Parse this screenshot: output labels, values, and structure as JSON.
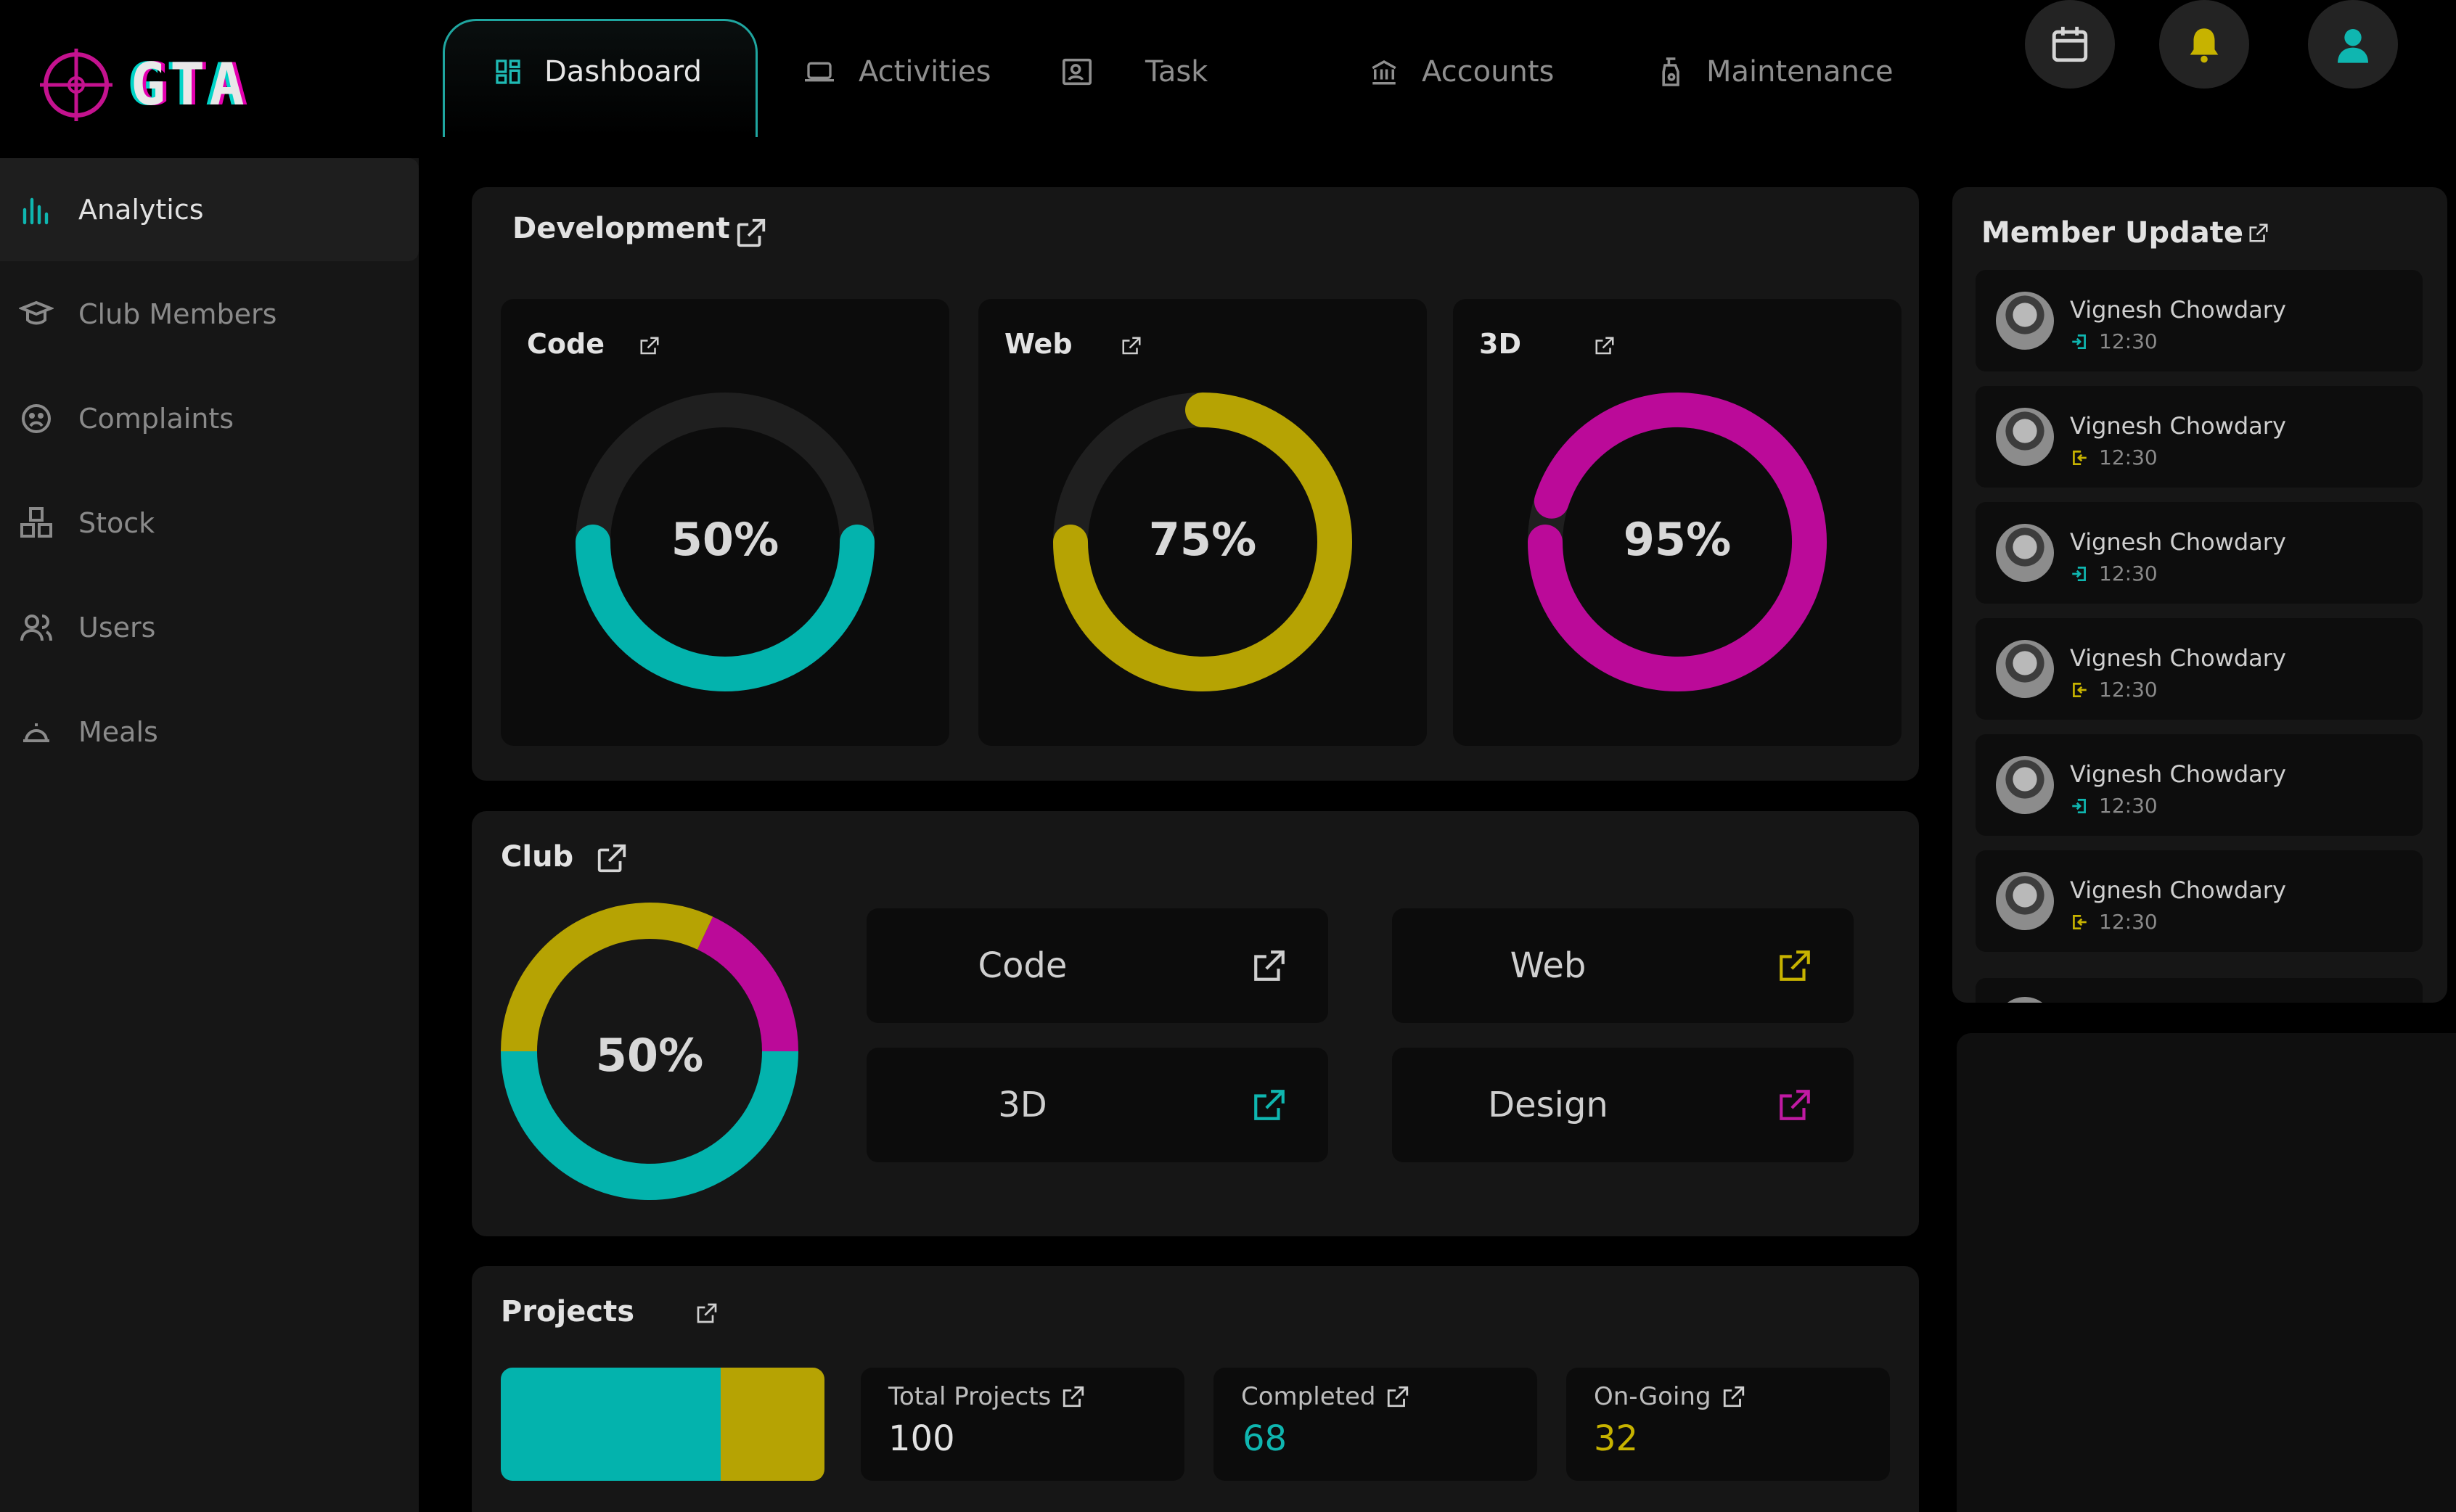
{
  "app": {
    "logo_text": "GTA"
  },
  "nav": {
    "tabs": [
      {
        "label": "Dashboard",
        "icon": "grid-icon"
      },
      {
        "label": "Activities",
        "icon": "laptop-icon"
      },
      {
        "label": "Task",
        "icon": "id-card-icon"
      },
      {
        "label": "Accounts",
        "icon": "bank-icon"
      },
      {
        "label": "Maintenance",
        "icon": "spray-bottle-icon"
      }
    ],
    "actions": [
      "calendar-icon",
      "bell-icon",
      "user-icon"
    ]
  },
  "sidebar": {
    "items": [
      {
        "label": "Analytics",
        "icon": "bar-chart-icon",
        "active": true
      },
      {
        "label": "Club Members",
        "icon": "graduation-icon"
      },
      {
        "label": "Complaints",
        "icon": "sad-face-icon"
      },
      {
        "label": "Stock",
        "icon": "boxes-icon"
      },
      {
        "label": "Users",
        "icon": "users-icon"
      },
      {
        "label": "Meals",
        "icon": "cloche-icon"
      }
    ]
  },
  "development": {
    "title": "Development",
    "cards": [
      {
        "label": "Code",
        "percent_text": "50%",
        "value": 50,
        "color": "#03b3ad"
      },
      {
        "label": "Web",
        "percent_text": "75%",
        "value": 75,
        "color": "#b6a303"
      },
      {
        "label": "3D",
        "percent_text": "95%",
        "value": 95,
        "color": "#bb0a99"
      }
    ]
  },
  "club": {
    "title": "Club",
    "percent_text": "50%",
    "ring_segments": [
      {
        "color": "#03b3ad",
        "value": 50
      },
      {
        "color": "#b6a303",
        "value": 32
      },
      {
        "color": "#bb0a99",
        "value": 18
      }
    ],
    "buttons": [
      {
        "label": "Code",
        "icon_color": "#cfcfcf"
      },
      {
        "label": "Web",
        "icon_color": "#c7b300"
      },
      {
        "label": "3D",
        "icon_color": "#0fb6b0"
      },
      {
        "label": "Design",
        "icon_color": "#c01aa3"
      }
    ]
  },
  "projects": {
    "title": "Projects",
    "total_label": "Total Projects",
    "total_value": "100",
    "completed_label": "Completed",
    "completed_value": "68",
    "ongoing_label": "On-Going",
    "ongoing_value": "32",
    "bar": {
      "completed": 68,
      "ongoing": 32
    }
  },
  "member_update": {
    "title": "Member Update",
    "members": [
      {
        "name": "Vignesh Chowdary",
        "time": "12:30",
        "status": "in"
      },
      {
        "name": "Vignesh Chowdary",
        "time": "12:30",
        "status": "out"
      },
      {
        "name": "Vignesh Chowdary",
        "time": "12:30",
        "status": "in"
      },
      {
        "name": "Vignesh Chowdary",
        "time": "12:30",
        "status": "out"
      },
      {
        "name": "Vignesh Chowdary",
        "time": "12:30",
        "status": "in"
      },
      {
        "name": "Vignesh Chowdary",
        "time": "12:30",
        "status": "out"
      }
    ]
  },
  "colors": {
    "teal": "#03b3ad",
    "gold": "#b6a303",
    "magenta": "#bb0a99"
  }
}
